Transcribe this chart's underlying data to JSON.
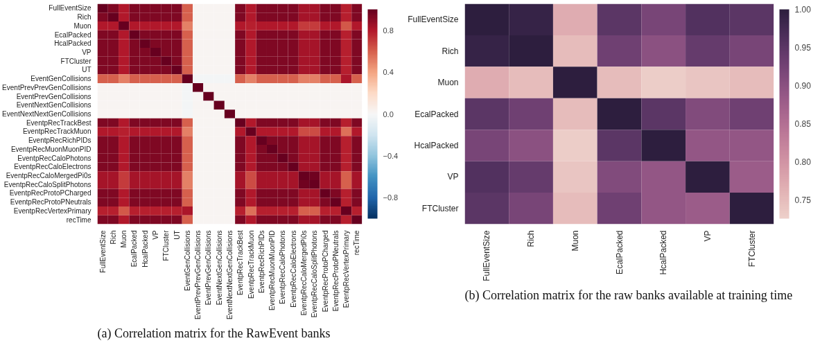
{
  "chart_data": [
    {
      "type": "heatmap",
      "categories": [
        "FullEventSize",
        "Rich",
        "Muon",
        "EcalPacked",
        "HcalPacked",
        "VP",
        "FTCluster",
        "UT",
        "EventGenCollisions",
        "EventPrevPrevGenCollisions",
        "EventPrevGenCollisions",
        "EventNextGenCollisions",
        "EventNextNextGenCollisions",
        "EventpRecTrackBest",
        "EventpRecTrackMuon",
        "EventpRecRichPIDs",
        "EventpRecMuonMuonPID",
        "EventpRecCaloPhotons",
        "EventpRecCaloElectrons",
        "EventpRecCaloMergedPi0s",
        "EventpRecCaloSplitPhotons",
        "EventpRecProtoPCharged",
        "EventpRecProtoPNeutrals",
        "EventpRecVertexPrimary",
        "recTime"
      ],
      "y_categories": [
        "FullEventSize",
        "Rich",
        "Muon",
        "EcalPacked",
        "HcalPacked",
        "VP",
        "FTCluster",
        "UT",
        "EventGenCollisions",
        "EventPrevPrevGenCollisions",
        "EventPrevGenCollisions",
        "EventNextGenCollisions",
        "EventNextNextGenCollisions",
        "EventpRecTrackBest",
        "EventpRecTrackMuon",
        "EventpRecRichPIDs",
        "EventpRecMuonMuonPID",
        "EventpRecCaloPhotons",
        "EventpRecCaloElectrons",
        "EventpRecCaloMergedPi0s",
        "EventpRecCaloSplitPhotons",
        "EventpRecProtoPCharged",
        "EventpRecProtoPNeutrals",
        "EventpRecVertexPrimary",
        "recTime"
      ],
      "cells": [
        [
          1,
          0.93,
          0.8,
          0.93,
          0.93,
          0.93,
          0.93,
          0.93,
          0.6,
          0.02,
          0.02,
          0.02,
          0.02,
          0.93,
          0.8,
          0.93,
          0.93,
          0.93,
          0.93,
          0.83,
          0.83,
          0.93,
          0.93,
          0.78,
          0.93
        ],
        [
          0.93,
          1,
          0.8,
          0.93,
          0.93,
          0.93,
          0.93,
          0.93,
          0.6,
          0.02,
          0.02,
          0.02,
          0.02,
          0.93,
          0.8,
          0.93,
          0.93,
          0.93,
          0.93,
          0.83,
          0.83,
          0.93,
          0.93,
          0.78,
          0.93
        ],
        [
          0.8,
          0.8,
          1,
          0.8,
          0.8,
          0.8,
          0.8,
          0.8,
          0.5,
          0.02,
          0.02,
          0.02,
          0.02,
          0.8,
          0.78,
          0.8,
          0.8,
          0.8,
          0.8,
          0.7,
          0.7,
          0.8,
          0.8,
          0.62,
          0.8
        ],
        [
          0.93,
          0.93,
          0.8,
          1,
          0.93,
          0.93,
          0.93,
          0.93,
          0.6,
          0.02,
          0.02,
          0.02,
          0.02,
          0.93,
          0.8,
          0.93,
          0.93,
          0.93,
          0.93,
          0.83,
          0.83,
          0.93,
          0.93,
          0.78,
          0.93
        ],
        [
          0.93,
          0.93,
          0.8,
          0.93,
          1,
          0.93,
          0.93,
          0.93,
          0.6,
          0.02,
          0.02,
          0.02,
          0.02,
          0.93,
          0.8,
          0.93,
          0.93,
          0.93,
          0.93,
          0.83,
          0.83,
          0.93,
          0.93,
          0.78,
          0.93
        ],
        [
          0.93,
          0.93,
          0.8,
          0.93,
          0.93,
          1,
          0.93,
          0.93,
          0.6,
          0.02,
          0.02,
          0.02,
          0.02,
          0.93,
          0.8,
          0.93,
          0.93,
          0.93,
          0.93,
          0.83,
          0.83,
          0.93,
          0.93,
          0.78,
          0.93
        ],
        [
          0.93,
          0.93,
          0.8,
          0.93,
          0.93,
          0.93,
          1,
          0.93,
          0.6,
          0.02,
          0.02,
          0.02,
          0.02,
          0.93,
          0.8,
          0.93,
          0.93,
          0.93,
          0.93,
          0.83,
          0.83,
          0.93,
          0.93,
          0.78,
          0.93
        ],
        [
          0.93,
          0.93,
          0.8,
          0.93,
          0.93,
          0.93,
          0.93,
          1,
          0.6,
          0.02,
          0.02,
          0.02,
          0.02,
          0.93,
          0.8,
          0.93,
          0.93,
          0.93,
          0.93,
          0.83,
          0.83,
          0.93,
          0.93,
          0.78,
          0.93
        ],
        [
          0.6,
          0.6,
          0.5,
          0.6,
          0.6,
          0.6,
          0.6,
          0.6,
          1,
          -0.02,
          -0.02,
          -0.02,
          -0.02,
          0.6,
          0.5,
          0.6,
          0.6,
          0.6,
          0.6,
          0.5,
          0.5,
          0.6,
          0.6,
          0.82,
          0.6
        ],
        [
          0.02,
          0.02,
          0.02,
          0.02,
          0.02,
          0.02,
          0.02,
          0.02,
          -0.02,
          1,
          0.02,
          0.02,
          0.02,
          0.02,
          0.02,
          0.02,
          0.02,
          0.02,
          0.02,
          0.02,
          0.02,
          0.02,
          0.02,
          0.02,
          0.02
        ],
        [
          0.02,
          0.02,
          0.02,
          0.02,
          0.02,
          0.02,
          0.02,
          0.02,
          -0.02,
          0.02,
          1,
          0.02,
          0.02,
          0.02,
          0.02,
          0.02,
          0.02,
          0.02,
          0.02,
          0.02,
          0.02,
          0.02,
          0.02,
          0.02,
          0.02
        ],
        [
          0.02,
          0.02,
          0.02,
          0.02,
          0.02,
          0.02,
          0.02,
          0.02,
          -0.02,
          0.02,
          0.02,
          1,
          0.02,
          0.02,
          0.02,
          0.02,
          0.02,
          0.02,
          0.02,
          0.02,
          0.02,
          0.02,
          0.02,
          0.02,
          0.02
        ],
        [
          0.02,
          0.02,
          0.02,
          0.02,
          0.02,
          0.02,
          0.02,
          0.02,
          -0.02,
          0.02,
          0.02,
          0.02,
          1,
          0.02,
          0.02,
          0.02,
          0.02,
          0.02,
          0.02,
          0.02,
          0.02,
          0.02,
          0.02,
          0.02,
          0.02
        ],
        [
          0.93,
          0.93,
          0.8,
          0.93,
          0.93,
          0.93,
          0.93,
          0.93,
          0.6,
          0.02,
          0.02,
          0.02,
          0.02,
          1,
          0.8,
          0.93,
          0.93,
          0.93,
          0.93,
          0.83,
          0.83,
          0.93,
          0.93,
          0.78,
          0.93
        ],
        [
          0.8,
          0.8,
          0.78,
          0.8,
          0.8,
          0.8,
          0.8,
          0.8,
          0.5,
          0.02,
          0.02,
          0.02,
          0.02,
          0.8,
          1,
          0.8,
          0.8,
          0.8,
          0.8,
          0.65,
          0.65,
          0.8,
          0.8,
          0.55,
          0.8
        ],
        [
          0.93,
          0.93,
          0.8,
          0.93,
          0.93,
          0.93,
          0.93,
          0.93,
          0.6,
          0.02,
          0.02,
          0.02,
          0.02,
          0.93,
          0.8,
          1,
          0.93,
          0.93,
          0.93,
          0.83,
          0.83,
          0.93,
          0.93,
          0.78,
          0.93
        ],
        [
          0.93,
          0.93,
          0.8,
          0.93,
          0.93,
          0.93,
          0.93,
          0.93,
          0.6,
          0.02,
          0.02,
          0.02,
          0.02,
          0.93,
          0.8,
          0.93,
          1,
          0.93,
          0.93,
          0.83,
          0.83,
          0.93,
          0.93,
          0.78,
          0.93
        ],
        [
          0.93,
          0.93,
          0.8,
          0.93,
          0.93,
          0.93,
          0.93,
          0.93,
          0.6,
          0.02,
          0.02,
          0.02,
          0.02,
          0.93,
          0.8,
          0.93,
          0.93,
          1,
          0.93,
          0.83,
          0.83,
          0.93,
          0.93,
          0.78,
          0.93
        ],
        [
          0.93,
          0.93,
          0.8,
          0.93,
          0.93,
          0.93,
          0.93,
          0.93,
          0.6,
          0.02,
          0.02,
          0.02,
          0.02,
          0.93,
          0.8,
          0.93,
          0.93,
          0.93,
          1,
          0.83,
          0.83,
          0.93,
          0.93,
          0.78,
          0.93
        ],
        [
          0.83,
          0.83,
          0.7,
          0.83,
          0.83,
          0.83,
          0.83,
          0.83,
          0.5,
          0.02,
          0.02,
          0.02,
          0.02,
          0.83,
          0.65,
          0.83,
          0.83,
          0.83,
          0.83,
          1,
          0.97,
          0.83,
          0.83,
          0.6,
          0.83
        ],
        [
          0.83,
          0.83,
          0.7,
          0.83,
          0.83,
          0.83,
          0.83,
          0.83,
          0.5,
          0.02,
          0.02,
          0.02,
          0.02,
          0.83,
          0.65,
          0.83,
          0.83,
          0.83,
          0.83,
          0.97,
          1,
          0.83,
          0.83,
          0.6,
          0.83
        ],
        [
          0.93,
          0.93,
          0.8,
          0.93,
          0.93,
          0.93,
          0.93,
          0.93,
          0.6,
          0.02,
          0.02,
          0.02,
          0.02,
          0.93,
          0.8,
          0.93,
          0.93,
          0.93,
          0.93,
          0.83,
          0.83,
          1,
          0.93,
          0.78,
          0.93
        ],
        [
          0.93,
          0.93,
          0.8,
          0.93,
          0.93,
          0.93,
          0.93,
          0.93,
          0.6,
          0.02,
          0.02,
          0.02,
          0.02,
          0.93,
          0.8,
          0.93,
          0.93,
          0.93,
          0.93,
          0.83,
          0.83,
          0.93,
          1,
          0.78,
          0.93
        ],
        [
          0.78,
          0.78,
          0.62,
          0.78,
          0.78,
          0.78,
          0.78,
          0.78,
          0.82,
          0.02,
          0.02,
          0.02,
          0.02,
          0.78,
          0.55,
          0.78,
          0.78,
          0.78,
          0.78,
          0.6,
          0.6,
          0.78,
          0.78,
          1,
          0.78
        ],
        [
          0.93,
          0.93,
          0.8,
          0.93,
          0.93,
          0.93,
          0.93,
          0.93,
          0.6,
          0.02,
          0.02,
          0.02,
          0.02,
          0.93,
          0.8,
          0.93,
          0.93,
          0.93,
          0.93,
          0.83,
          0.83,
          0.93,
          0.93,
          0.78,
          1
        ]
      ],
      "clim": [
        -1,
        1
      ],
      "cticks": [
        {
          "value": -0.8,
          "label": "−0.8"
        },
        {
          "value": -0.4,
          "label": "−0.4"
        },
        {
          "value": 0,
          "label": "0.0"
        },
        0.4,
        0.8
      ],
      "annotations": [
        "(a) Correlation matrix for the RawEvent banks"
      ]
    },
    {
      "type": "heatmap",
      "categories": [
        "FullEventSize",
        "Rich",
        "Muon",
        "EcalPacked",
        "HcalPacked",
        "VP",
        "FTCluster"
      ],
      "y_categories": [
        "FullEventSize",
        "Rich",
        "Muon",
        "EcalPacked",
        "HcalPacked",
        "VP",
        "FTCluster"
      ],
      "cells": [
        [
          1,
          0.99,
          0.77,
          0.95,
          0.92,
          0.96,
          0.95
        ],
        [
          0.99,
          1,
          0.75,
          0.93,
          0.9,
          0.94,
          0.92
        ],
        [
          0.77,
          0.75,
          1,
          0.75,
          0.73,
          0.74,
          0.75
        ],
        [
          0.95,
          0.93,
          0.75,
          1,
          0.95,
          0.91,
          0.93
        ],
        [
          0.92,
          0.9,
          0.73,
          0.95,
          1,
          0.89,
          0.89
        ],
        [
          0.96,
          0.94,
          0.74,
          0.91,
          0.89,
          1,
          0.88
        ],
        [
          0.95,
          0.92,
          0.75,
          0.93,
          0.89,
          0.88,
          1
        ]
      ],
      "clim": [
        0.725,
        1.0
      ],
      "cticks": [
        0.75,
        {
          "value": 0.8,
          "label": "0.80"
        },
        0.85,
        {
          "value": 0.9,
          "label": "0.90"
        },
        0.95,
        {
          "value": 1.0,
          "label": "1.00"
        }
      ],
      "annotations": [
        "(b) Correlation matrix for the raw banks available at training time"
      ]
    }
  ]
}
